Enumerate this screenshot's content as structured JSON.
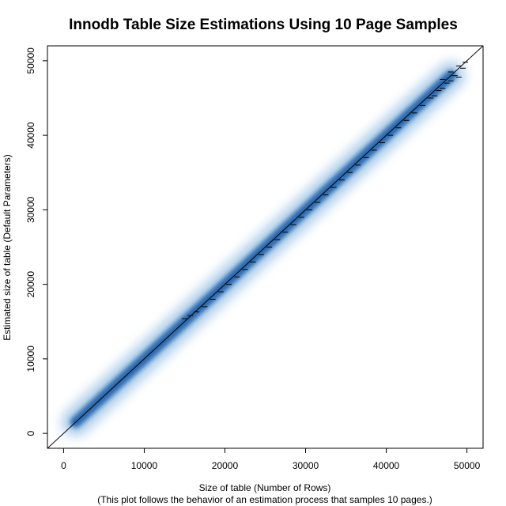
{
  "chart_data": {
    "type": "scatter",
    "title": "Innodb Table Size Estimations Using 10 Page Samples",
    "xlabel": "Size of table (Number of Rows)",
    "xlabel_sub": "(This plot follows the behavior of an estimation process that samples 10 pages.)",
    "ylabel": "Estimated size of table (Default Parameters)",
    "xlim": [
      -2000,
      52000
    ],
    "ylim": [
      -2000,
      52000
    ],
    "x_ticks": [
      0,
      10000,
      20000,
      30000,
      40000,
      50000
    ],
    "y_ticks": [
      0,
      10000,
      20000,
      30000,
      40000,
      50000
    ],
    "x_tick_labels": [
      "0",
      "10000",
      "20000",
      "30000",
      "40000",
      "50000"
    ],
    "y_tick_labels": [
      "0",
      "10000",
      "20000",
      "30000",
      "40000",
      "50000"
    ],
    "reference_line": {
      "slope": 1,
      "intercept": 0
    },
    "density": {
      "x_range": [
        1500,
        48000
      ],
      "color": "#1f5fa8"
    },
    "outlier_dashes": [
      {
        "x": 15000,
        "y": 15400
      },
      {
        "x": 15700,
        "y": 15800
      },
      {
        "x": 16500,
        "y": 16300
      },
      {
        "x": 17500,
        "y": 17000
      },
      {
        "x": 18500,
        "y": 18000
      },
      {
        "x": 19500,
        "y": 19000
      },
      {
        "x": 20500,
        "y": 20000
      },
      {
        "x": 21500,
        "y": 21000
      },
      {
        "x": 22500,
        "y": 22000
      },
      {
        "x": 23500,
        "y": 23000
      },
      {
        "x": 24500,
        "y": 24000
      },
      {
        "x": 25500,
        "y": 25000
      },
      {
        "x": 26500,
        "y": 26000
      },
      {
        "x": 27500,
        "y": 27000
      },
      {
        "x": 28500,
        "y": 28000
      },
      {
        "x": 29500,
        "y": 29000
      },
      {
        "x": 30500,
        "y": 30000
      },
      {
        "x": 31500,
        "y": 31000
      },
      {
        "x": 32500,
        "y": 32000
      },
      {
        "x": 33500,
        "y": 33000
      },
      {
        "x": 34500,
        "y": 34000
      },
      {
        "x": 35500,
        "y": 35000
      },
      {
        "x": 36500,
        "y": 36000
      },
      {
        "x": 37500,
        "y": 37000
      },
      {
        "x": 38500,
        "y": 38000
      },
      {
        "x": 39500,
        "y": 39000
      },
      {
        "x": 40500,
        "y": 40000
      },
      {
        "x": 41500,
        "y": 41000
      },
      {
        "x": 42500,
        "y": 42000
      },
      {
        "x": 43500,
        "y": 43000
      },
      {
        "x": 44500,
        "y": 44000
      },
      {
        "x": 45500,
        "y": 45000
      },
      {
        "x": 46500,
        "y": 46000
      },
      {
        "x": 47500,
        "y": 47000
      },
      {
        "x": 48500,
        "y": 48000
      },
      {
        "x": 49500,
        "y": 49000
      },
      {
        "x": 47000,
        "y": 47500
      },
      {
        "x": 48000,
        "y": 48500
      },
      {
        "x": 49000,
        "y": 49300
      },
      {
        "x": 49800,
        "y": 49800
      },
      {
        "x": 46000,
        "y": 45300
      },
      {
        "x": 47000,
        "y": 46300
      },
      {
        "x": 48000,
        "y": 47300
      },
      {
        "x": 49000,
        "y": 47800
      }
    ]
  }
}
